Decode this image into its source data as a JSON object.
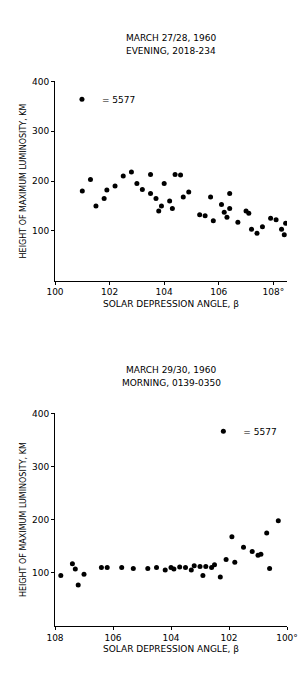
{
  "chart_data": [
    {
      "type": "scatter",
      "title": "MARCH 27/28, 1960",
      "subtitle": "EVENING, 2018-234",
      "x_label": "SOLAR DEPRESSION ANGLE, β",
      "y_label": "HEIGHT OF MAXIMUM LUMINOSITY, KM",
      "x": [
        101.0,
        101.3,
        101.5,
        101.8,
        101.9,
        102.2,
        102.5,
        102.8,
        103.0,
        103.2,
        103.5,
        103.5,
        103.7,
        103.8,
        103.9,
        104.0,
        104.2,
        104.3,
        104.4,
        104.6,
        104.7,
        104.9,
        105.3,
        105.5,
        105.7,
        105.8,
        106.1,
        106.2,
        106.3,
        106.4,
        106.4,
        106.7,
        107.0,
        107.1,
        107.2,
        107.4,
        107.6,
        107.9,
        108.1,
        108.3,
        108.4,
        108.45
      ],
      "series": [
        {
          "name": "= 5577",
          "color": "#000000",
          "marker": "circle",
          "values": [
            180,
            203,
            150,
            165,
            182,
            190,
            210,
            218,
            195,
            183,
            213,
            175,
            165,
            140,
            150,
            195,
            160,
            145,
            213,
            212,
            168,
            178,
            132,
            130,
            168,
            120,
            153,
            137,
            127,
            175,
            145,
            117,
            140,
            135,
            103,
            95,
            108,
            125,
            122,
            103,
            92,
            115
          ]
        }
      ],
      "xlim": [
        100,
        108.5
      ],
      "xticks": [
        100,
        102,
        104,
        106,
        {
          "value": 108,
          "label": "108°"
        }
      ],
      "ylim": [
        0,
        400
      ],
      "yticks": [
        100,
        200,
        300,
        400
      ],
      "legend": "upper left",
      "grid": false
    },
    {
      "type": "scatter",
      "title": "MARCH 29/30, 1960",
      "subtitle": "MORNING, 0139-0350",
      "x_label": "SOLAR DEPRESSION ANGLE, β",
      "y_label": "HEIGHT OF MAXIMUM LUMINOSITY, KM",
      "x": [
        107.8,
        107.4,
        107.3,
        107.2,
        107.0,
        106.4,
        106.2,
        105.7,
        105.3,
        104.8,
        104.5,
        104.2,
        104.0,
        103.9,
        103.7,
        103.5,
        103.3,
        103.2,
        103.0,
        102.9,
        102.8,
        102.6,
        102.5,
        102.3,
        102.1,
        101.9,
        101.8,
        101.5,
        101.2,
        101.0,
        100.9,
        100.7,
        100.6,
        100.3
      ],
      "series": [
        {
          "name": "= 5577",
          "color": "#000000",
          "marker": "circle",
          "values": [
            95,
            117,
            107,
            77,
            97,
            110,
            110,
            110,
            108,
            108,
            110,
            105,
            110,
            107,
            111,
            110,
            105,
            113,
            112,
            95,
            112,
            110,
            115,
            92,
            125,
            168,
            120,
            148,
            140,
            133,
            135,
            175,
            108,
            198
          ]
        }
      ],
      "xlim": [
        108,
        100
      ],
      "xticks": [
        108,
        106,
        104,
        102,
        {
          "value": 100,
          "label": "100°"
        }
      ],
      "ylim": [
        0,
        400
      ],
      "yticks": [
        100,
        200,
        300,
        400
      ],
      "legend": "upper right",
      "grid": false
    }
  ]
}
